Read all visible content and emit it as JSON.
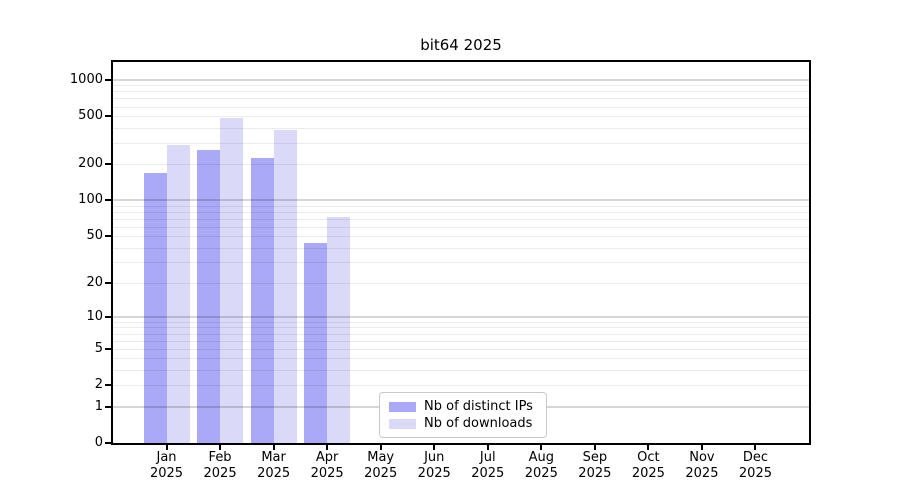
{
  "chart_data": {
    "type": "bar",
    "title": "bit64 2025",
    "scale": "log1p",
    "year": "2025",
    "categories": [
      "Jan",
      "Feb",
      "Mar",
      "Apr",
      "May",
      "Jun",
      "Jul",
      "Aug",
      "Sep",
      "Oct",
      "Nov",
      "Dec"
    ],
    "series": [
      {
        "name": "Nb of distinct IPs",
        "color": "#a9a9f7",
        "values": [
          170,
          260,
          225,
          44,
          0,
          0,
          0,
          0,
          0,
          0,
          0,
          0
        ]
      },
      {
        "name": "Nb of downloads",
        "color": "#dadaf8",
        "values": [
          290,
          480,
          380,
          72,
          0,
          0,
          0,
          0,
          0,
          0,
          0,
          0
        ]
      }
    ],
    "ylim": [
      0,
      1400
    ],
    "y_ticks": [
      0,
      1,
      2,
      5,
      10,
      20,
      50,
      100,
      200,
      500,
      1000
    ],
    "gridlines": {
      "major": [
        1,
        10,
        100,
        1000
      ],
      "minor": [
        2,
        3,
        4,
        5,
        6,
        7,
        8,
        9,
        20,
        30,
        40,
        50,
        60,
        70,
        80,
        90,
        200,
        300,
        400,
        500,
        600,
        700,
        800,
        900
      ]
    },
    "legend_position": "lower center",
    "grid": "horizontal only",
    "bar_colors_note": "two bars per month, distinct-IPs bar left of downloads bar"
  }
}
